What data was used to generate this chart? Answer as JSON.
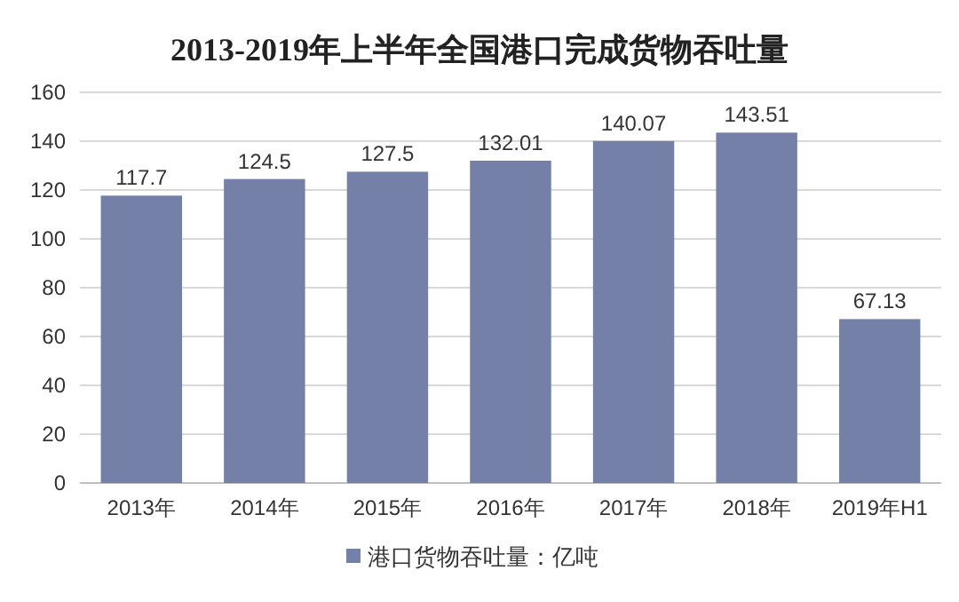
{
  "chart_data": {
    "type": "bar",
    "title": "2013-2019年上半年全国港口完成货物吞吐量",
    "categories": [
      "2013年",
      "2014年",
      "2015年",
      "2016年",
      "2017年",
      "2018年",
      "2019年H1"
    ],
    "series": [
      {
        "name": "港口货物吞吐量：亿吨",
        "color": "#7480a8",
        "values": [
          117.7,
          124.5,
          127.5,
          132.01,
          140.07,
          143.51,
          67.13
        ]
      }
    ],
    "ylim": [
      0,
      160
    ],
    "yticks": [
      0,
      20,
      40,
      60,
      80,
      100,
      120,
      140,
      160
    ],
    "grid": "y",
    "legend": "bottom",
    "data_labels": true
  }
}
